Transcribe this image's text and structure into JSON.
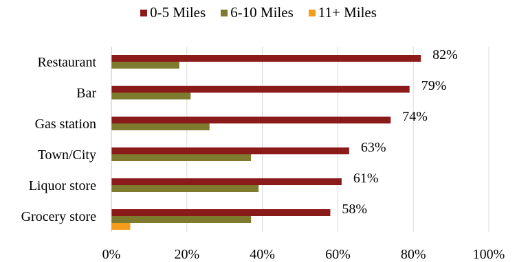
{
  "chart_data": {
    "type": "bar",
    "orientation": "horizontal",
    "categories": [
      "Restaurant",
      "Bar",
      "Gas station",
      "Town/City",
      "Liquor store",
      "Grocery store"
    ],
    "series": [
      {
        "name": "0-5 Miles",
        "color": "#8B1A1A",
        "values": [
          82,
          79,
          74,
          63,
          61,
          58
        ]
      },
      {
        "name": "6-10 Miles",
        "color": "#7E7B2E",
        "values": [
          18,
          21,
          26,
          37,
          39,
          37
        ]
      },
      {
        "name": "11+ Miles",
        "color": "#F59C1A",
        "values": [
          0,
          0,
          0,
          0,
          0,
          5
        ]
      }
    ],
    "data_labels": [
      "82%",
      "79%",
      "74%",
      "63%",
      "61%",
      "58%"
    ],
    "xlim": [
      0,
      100
    ],
    "x_ticks": [
      "0%",
      "20%",
      "40%",
      "60%",
      "80%",
      "100%"
    ],
    "grid": "vertical",
    "legend_position": "top"
  }
}
